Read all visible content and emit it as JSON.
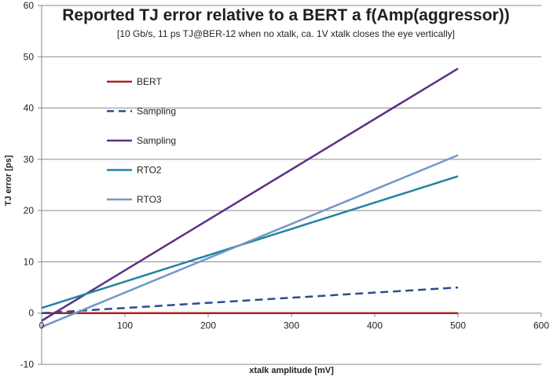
{
  "chart_data": {
    "type": "line",
    "title": "Reported TJ error relative to a BERT a f(Amp(aggressor))",
    "subtitle": "[10 Gb/s, 11 ps TJ@BER-12 when no xtalk, ca. 1V xtalk closes the eye vertically]",
    "xlabel": "xtalk amplitude [mV]",
    "ylabel": "TJ error [ps]",
    "xlim": [
      0,
      600
    ],
    "ylim": [
      -10,
      60
    ],
    "xticks": [
      "0",
      "100",
      "200",
      "300",
      "400",
      "500",
      "600"
    ],
    "yticks": [
      "-10",
      "0",
      "10",
      "20",
      "30",
      "40",
      "50",
      "60"
    ],
    "grid": "horizontal",
    "legend_position": "upper-left-inside",
    "series": [
      {
        "name": "BERT",
        "color": "#b0221c",
        "dash": "solid",
        "x": [
          0,
          500
        ],
        "y": [
          0,
          0
        ]
      },
      {
        "name": "Sampling",
        "color": "#2a4e8f",
        "dash": "dashed",
        "x": [
          0,
          500
        ],
        "y": [
          0,
          5
        ]
      },
      {
        "name": "Sampling",
        "color": "#5b2f86",
        "dash": "solid",
        "x": [
          0,
          500
        ],
        "y": [
          -1.5,
          47.7
        ]
      },
      {
        "name": "RTO2",
        "color": "#2184a0",
        "dash": "solid",
        "x": [
          0,
          500
        ],
        "y": [
          1,
          26.7
        ]
      },
      {
        "name": "RTO3",
        "color": "#7196c6",
        "dash": "solid",
        "x": [
          0,
          500
        ],
        "y": [
          -2.7,
          30.8
        ]
      }
    ]
  }
}
